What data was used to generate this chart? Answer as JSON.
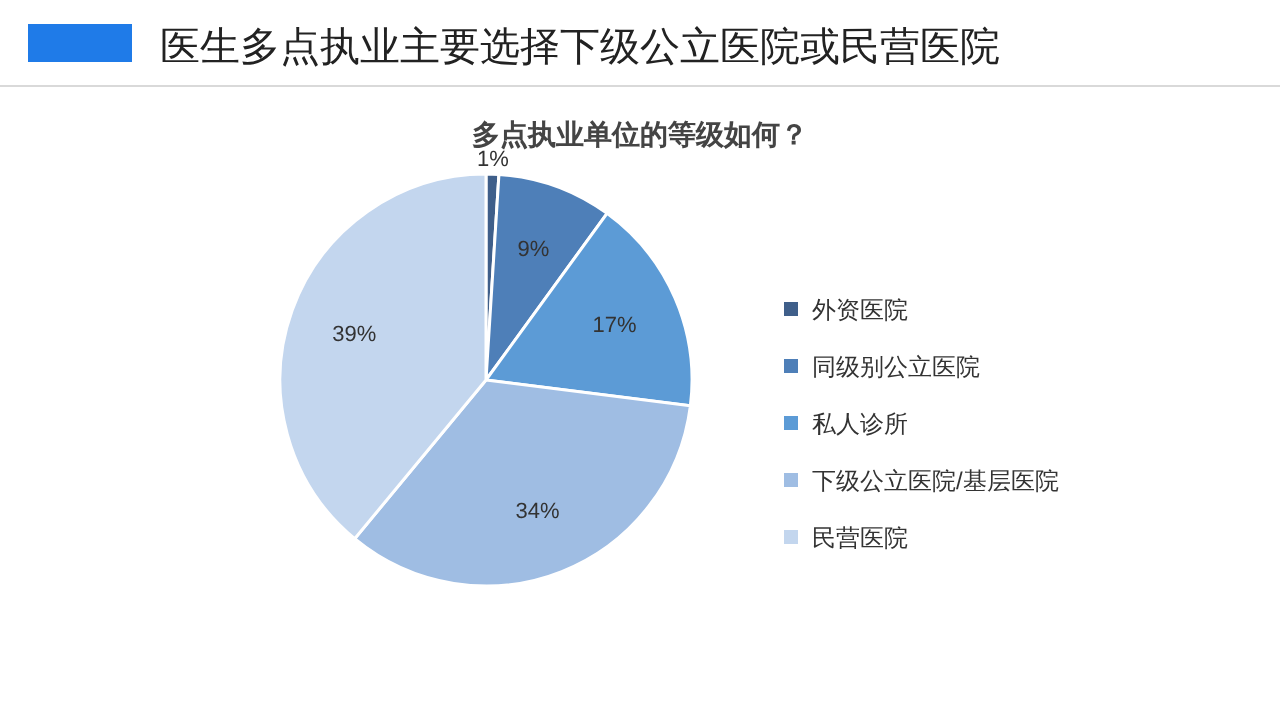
{
  "chart_data": {
    "type": "pie",
    "title": "医生多点执业主要选择下级公立医院或民营医院",
    "subtitle": "多点执业单位的等级如何？",
    "categories": [
      "外资医院",
      "同级别公立医院",
      "私人诊所",
      "下级公立医院/基层医院",
      "民营医院"
    ],
    "values": [
      1,
      9,
      17,
      34,
      39
    ],
    "colors": [
      "#3f5f8a",
      "#4e7fb8",
      "#5c9bd6",
      "#9fbde3",
      "#c3d6ee"
    ],
    "value_labels": [
      "1%",
      "9%",
      "17%",
      "34%",
      "39%"
    ],
    "legend": "right"
  }
}
